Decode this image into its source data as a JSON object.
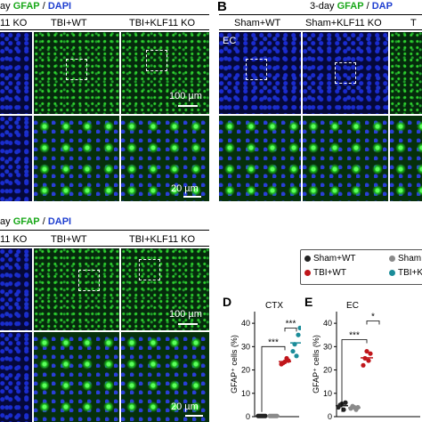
{
  "panelA": {
    "header_prefix": "ay ",
    "gfap": "GFAP",
    "slash": " / ",
    "dapi": "DAPI",
    "groups": [
      "11 KO",
      "TBI+WT",
      "TBI+KLF11 KO"
    ],
    "scale_big": "100 µm",
    "scale_small": "20 µm"
  },
  "panelB": {
    "letter": "B",
    "header_prefix": "3-day ",
    "gfap": "GFAP",
    "slash": " / ",
    "dapi": "DAP",
    "groups": [
      "Sham+WT",
      "Sham+KLF11 KO",
      "T"
    ],
    "region": "EC"
  },
  "panelC": {
    "header_prefix": "ay ",
    "gfap": "GFAP",
    "slash": " / ",
    "dapi": "DAPI",
    "groups": [
      "11 KO",
      "TBI+WT",
      "TBI+KLF11 KO"
    ],
    "scale_big": "100 µm",
    "scale_small": "20 µm"
  },
  "legend": {
    "items": [
      {
        "label": "Sham+WT",
        "color": "#222222"
      },
      {
        "label": "Sham",
        "color": "#8a8a8a"
      },
      {
        "label": "TBI+WT",
        "color": "#c0161b"
      },
      {
        "label": "TBI+K",
        "color": "#1b8c99"
      }
    ]
  },
  "chart_data": [
    {
      "type": "scatter",
      "panel": "D",
      "title": "CTX",
      "ylabel": "GFAP⁺ cells (%)",
      "ylim": [
        0,
        45
      ],
      "yticks": [
        "0",
        "10",
        "20",
        "30",
        "40"
      ],
      "significance": [
        "***",
        "***"
      ],
      "series": [
        {
          "color": "#222222",
          "values": [
            0.3,
            0.3,
            0.3,
            0.3,
            0.3
          ]
        },
        {
          "color": "#8a8a8a",
          "values": [
            0.3,
            0.3,
            0.3,
            0.3,
            0.3
          ]
        },
        {
          "color": "#c0161b",
          "values": [
            22.5,
            24,
            23,
            25,
            23.5
          ]
        },
        {
          "color": "#1b8c99",
          "values": [
            28,
            38,
            31,
            35,
            26
          ]
        }
      ]
    },
    {
      "type": "scatter",
      "panel": "E",
      "title": "EC",
      "ylabel": "GFAP⁺ cells (%)",
      "ylim": [
        0,
        45
      ],
      "yticks": [
        "0",
        "10",
        "20",
        "30",
        "40"
      ],
      "significance": [
        "***",
        "*"
      ],
      "series": [
        {
          "color": "#222222",
          "values": [
            4,
            6,
            5,
            3,
            5.5
          ]
        },
        {
          "color": "#8a8a8a",
          "values": [
            3.5,
            4,
            4.5,
            3,
            4
          ]
        },
        {
          "color": "#c0161b",
          "values": [
            22,
            27,
            25,
            24,
            28
          ]
        },
        {
          "color": "#1b8c99",
          "values": []
        }
      ]
    }
  ]
}
